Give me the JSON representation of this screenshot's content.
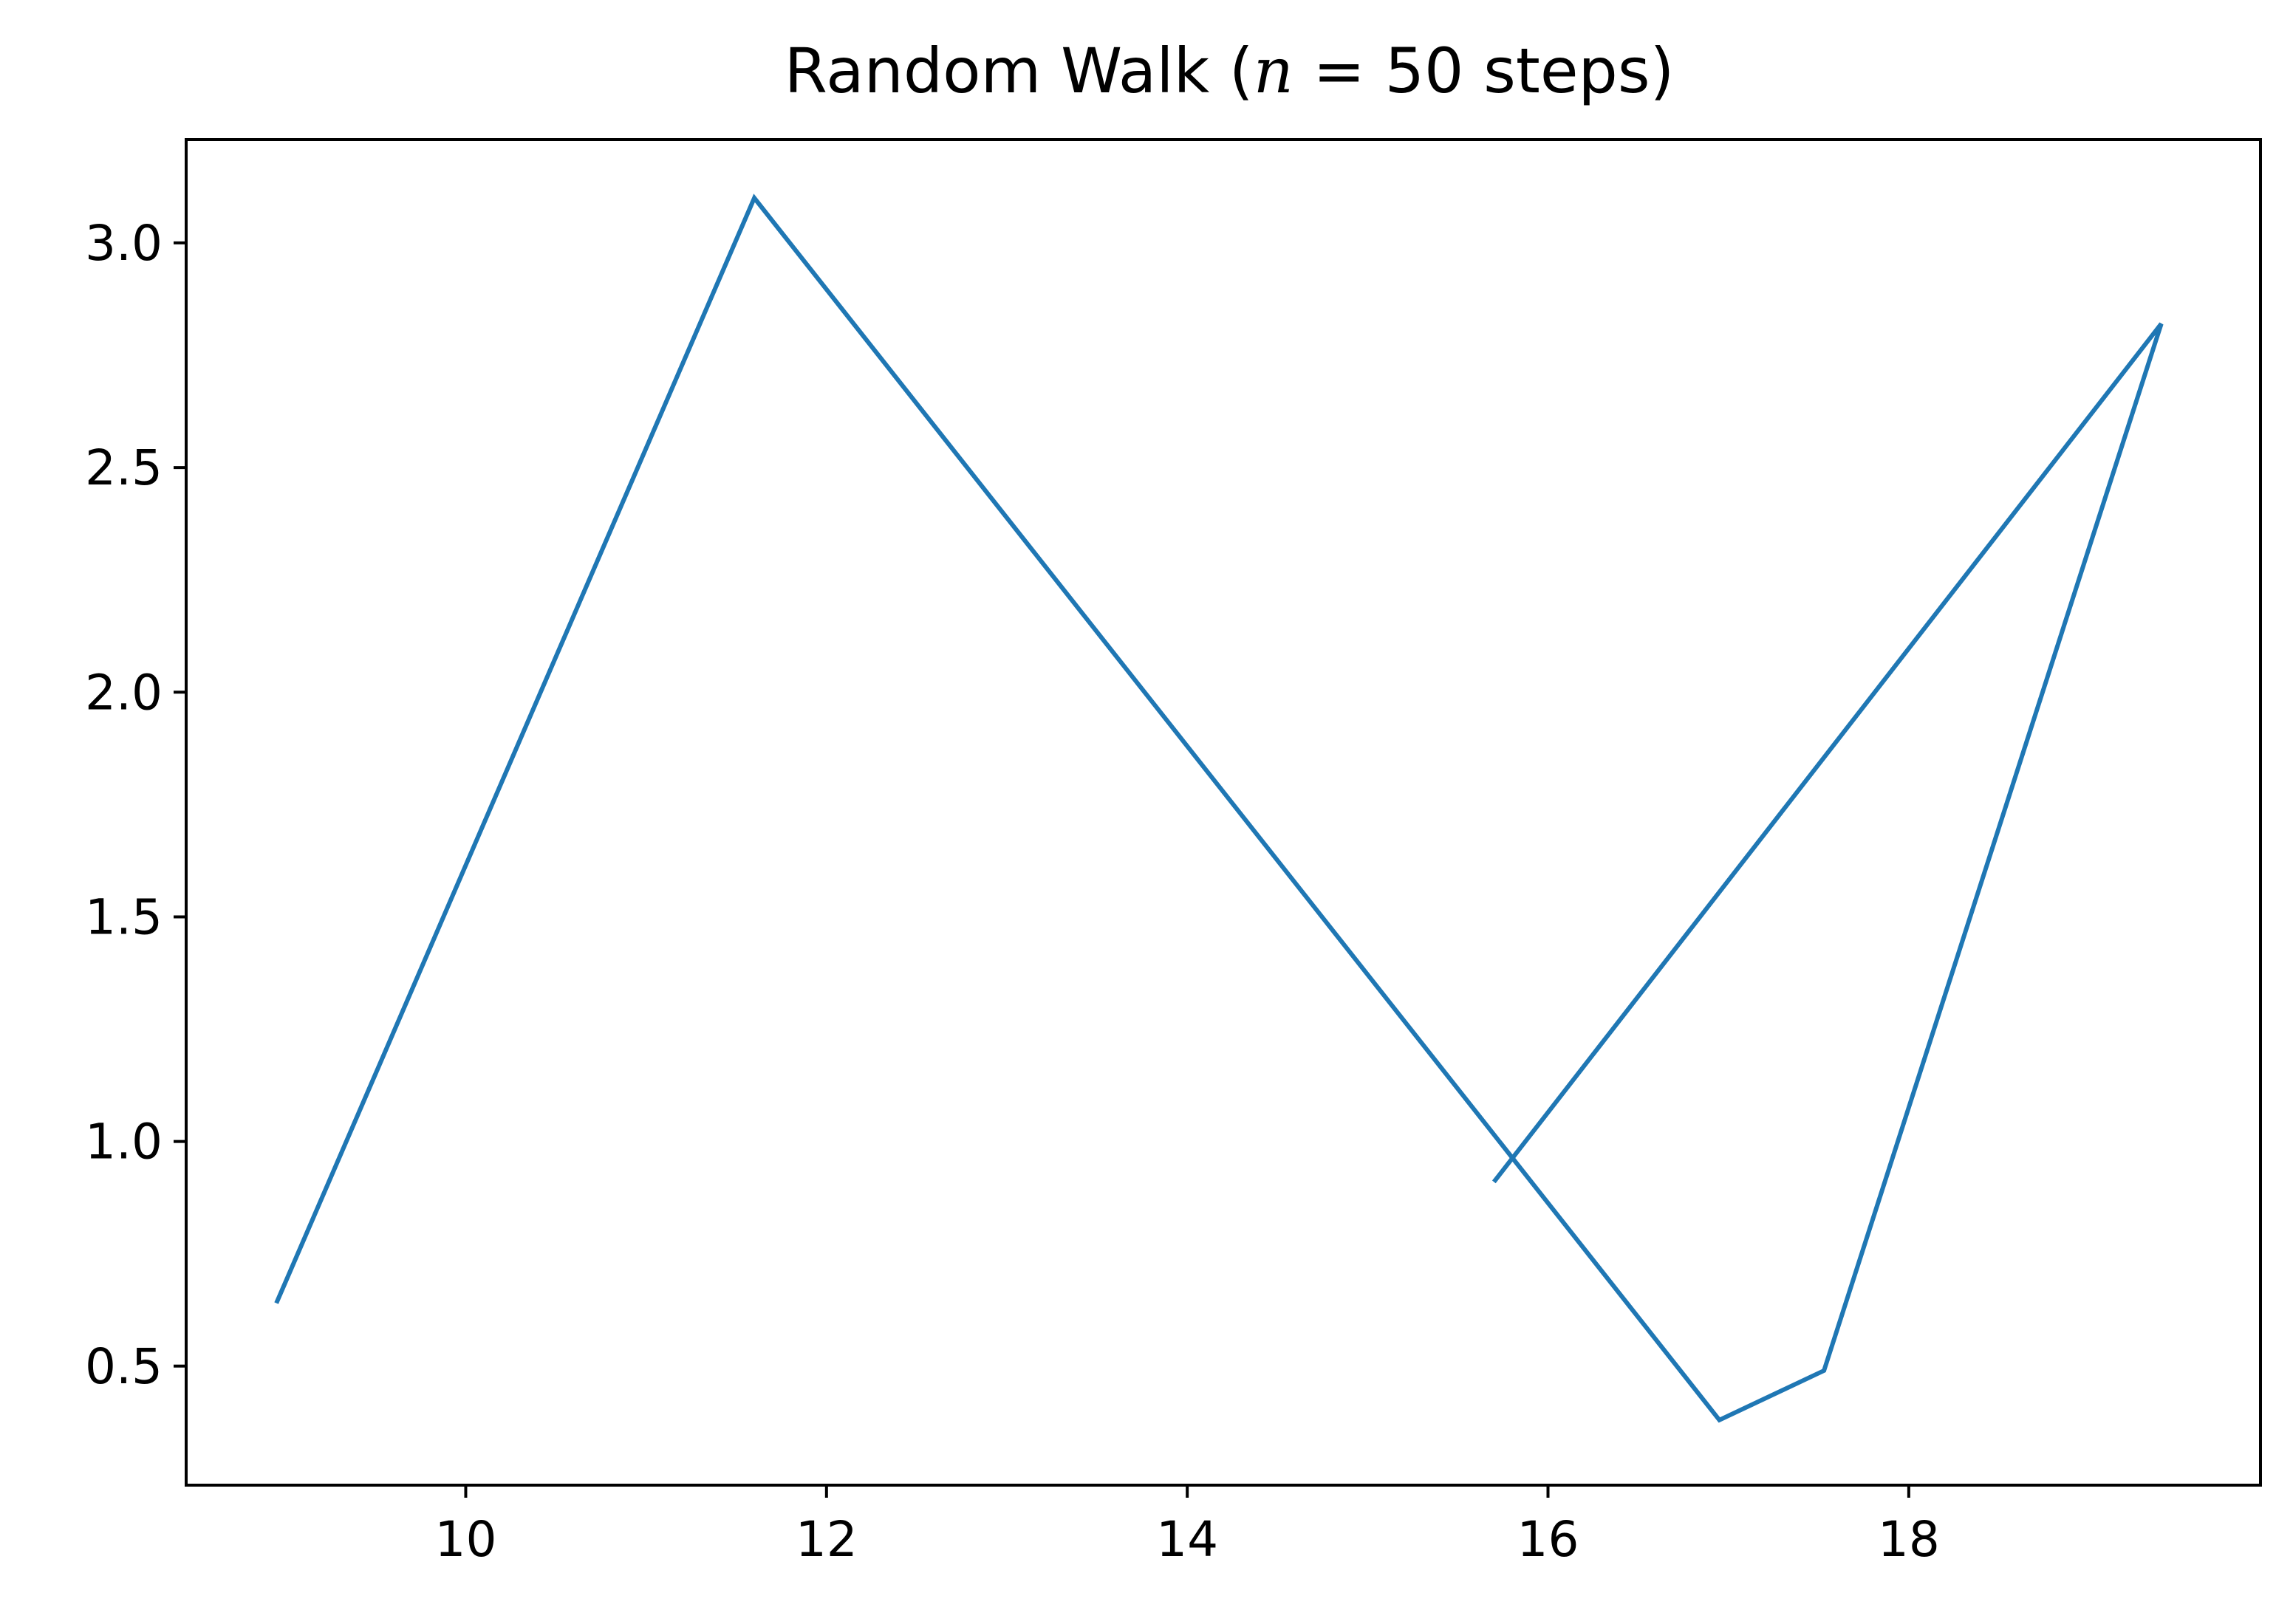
{
  "chart_data": {
    "type": "line",
    "title": {
      "prefix": "Random Walk (",
      "math_var": "n",
      "math_rest": " = 50",
      "suffix": " steps)"
    },
    "xlabel": "",
    "ylabel": "",
    "xlim": [
      8.45,
      19.95
    ],
    "ylim": [
      0.235,
      3.23
    ],
    "xticks": [
      10,
      12,
      14,
      16,
      18
    ],
    "xtick_labels": [
      "10",
      "12",
      "14",
      "16",
      "18"
    ],
    "yticks": [
      0.5,
      1.0,
      1.5,
      2.0,
      2.5,
      3.0
    ],
    "ytick_labels": [
      "0.5",
      "1.0",
      "1.5",
      "2.0",
      "2.5",
      "3.0"
    ],
    "grid": false,
    "series": [
      {
        "color": "#1f77b4",
        "x": [
          8.95,
          11.6,
          16.95,
          17.53,
          19.4,
          15.7
        ],
        "y": [
          0.64,
          3.1,
          0.38,
          0.49,
          2.82,
          0.91
        ]
      }
    ]
  }
}
